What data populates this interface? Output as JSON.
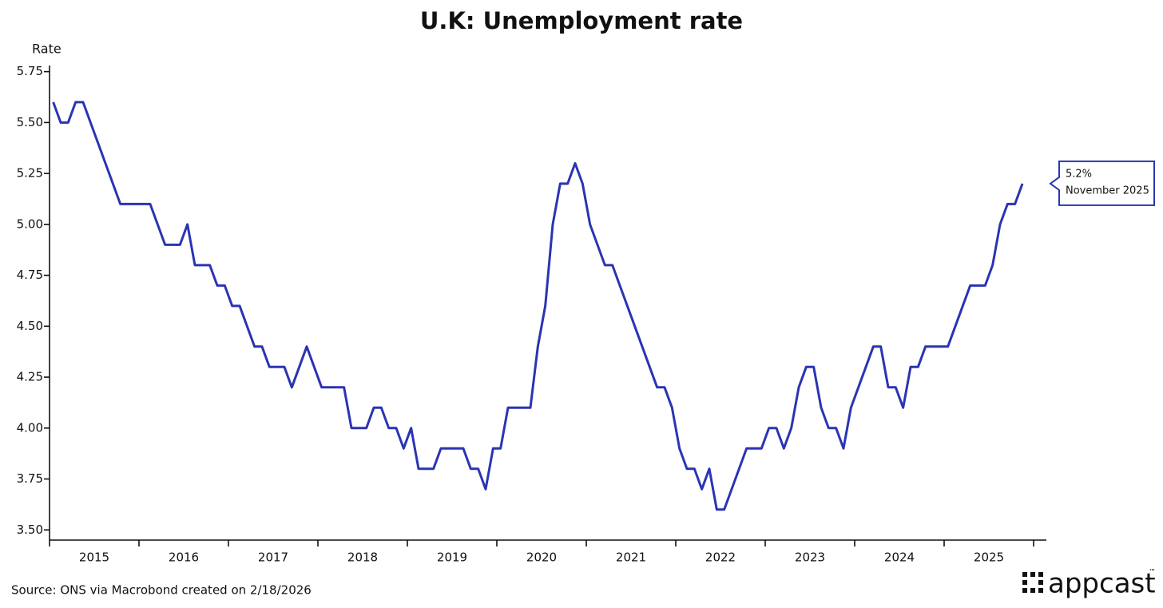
{
  "chart_data": {
    "type": "line",
    "title": "U.K: Unemployment rate",
    "y_label": "Rate",
    "source": "Source: ONS via Macrobond created on 2/18/2026",
    "logo": "appcast",
    "logo_mark": "™",
    "color": "#2b34b3",
    "categories": [
      null,
      null,
      null,
      null,
      null,
      null,
      "2015",
      null,
      null,
      null,
      null,
      null,
      null,
      null,
      null,
      null,
      null,
      null,
      "2016",
      null,
      null,
      null,
      null,
      null,
      null,
      null,
      null,
      null,
      null,
      null,
      "2017",
      null,
      null,
      null,
      null,
      null,
      null,
      null,
      null,
      null,
      null,
      null,
      "2018",
      null,
      null,
      null,
      null,
      null,
      null,
      null,
      null,
      null,
      null,
      null,
      "2019",
      null,
      null,
      null,
      null,
      null,
      null,
      null,
      null,
      null,
      null,
      null,
      "2020",
      null,
      null,
      null,
      null,
      null,
      null,
      null,
      null,
      null,
      null,
      null,
      "2021",
      null,
      null,
      null,
      null,
      null,
      null,
      null,
      null,
      null,
      null,
      null,
      "2022",
      null,
      null,
      null,
      null,
      null,
      null,
      null,
      null,
      null,
      null,
      null,
      "2023",
      null,
      null,
      null,
      null,
      null,
      null,
      null,
      null,
      null,
      null,
      null,
      "2024",
      null,
      null,
      null,
      null,
      null,
      null,
      null,
      null,
      null,
      null,
      null,
      "2025",
      null,
      null,
      null,
      null,
      null
    ],
    "values": [
      5.6,
      5.5,
      5.5,
      5.6,
      5.6,
      5.5,
      5.4,
      5.3,
      5.2,
      5.1,
      5.1,
      5.1,
      5.1,
      5.1,
      5.0,
      4.9,
      4.9,
      4.9,
      5.0,
      4.8,
      4.8,
      4.8,
      4.7,
      4.7,
      4.6,
      4.6,
      4.5,
      4.4,
      4.4,
      4.3,
      4.3,
      4.3,
      4.2,
      4.3,
      4.4,
      4.3,
      4.2,
      4.2,
      4.2,
      4.2,
      4.0,
      4.0,
      4.0,
      4.1,
      4.1,
      4.0,
      4.0,
      3.9,
      4.0,
      3.8,
      3.8,
      3.8,
      3.9,
      3.9,
      3.9,
      3.9,
      3.8,
      3.8,
      3.7,
      3.9,
      3.9,
      4.1,
      4.1,
      4.1,
      4.1,
      4.4,
      4.6,
      5.0,
      5.2,
      5.2,
      5.3,
      5.2,
      5.0,
      4.9,
      4.8,
      4.8,
      4.7,
      4.6,
      4.5,
      4.4,
      4.3,
      4.2,
      4.2,
      4.1,
      3.9,
      3.8,
      3.8,
      3.7,
      3.8,
      3.6,
      3.6,
      3.7,
      3.8,
      3.9,
      3.9,
      3.9,
      4.0,
      4.0,
      3.9,
      4.0,
      4.2,
      4.3,
      4.3,
      4.1,
      4.0,
      4.0,
      3.9,
      4.1,
      4.2,
      4.3,
      4.4,
      4.4,
      4.2,
      4.2,
      4.1,
      4.3,
      4.3,
      4.4,
      4.4,
      4.4,
      4.4,
      4.5,
      4.6,
      4.7,
      4.7,
      4.7,
      4.8,
      5.0,
      5.1,
      5.1,
      5.2,
      null
    ],
    "ylim": [
      3.45,
      5.78
    ],
    "yticks": [
      {
        "value": 3.5,
        "label": "3.50"
      },
      {
        "value": 3.75,
        "label": "3.75"
      },
      {
        "value": 4.0,
        "label": "4.00"
      },
      {
        "value": 4.25,
        "label": "4.25"
      },
      {
        "value": 4.5,
        "label": "4.50"
      },
      {
        "value": 4.75,
        "label": "4.75"
      },
      {
        "value": 5.0,
        "label": "5.00"
      },
      {
        "value": 5.25,
        "label": "5.25"
      },
      {
        "value": 5.5,
        "label": "5.50"
      },
      {
        "value": 5.75,
        "label": "5.75"
      }
    ],
    "annotation": {
      "lines": [
        "5.2%",
        "November 2025"
      ]
    }
  }
}
